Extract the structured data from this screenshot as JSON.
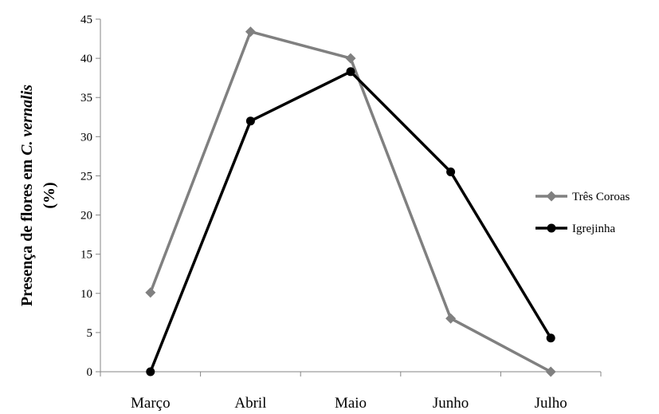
{
  "chart_data": {
    "type": "line",
    "categories": [
      "Março",
      "Abril",
      "Maio",
      "Junho",
      "Julho"
    ],
    "series": [
      {
        "name": "Três Coroas",
        "values": [
          10.1,
          43.4,
          40.0,
          6.8,
          0.0
        ],
        "color": "#808080",
        "marker": "diamond"
      },
      {
        "name": "Igrejinha",
        "values": [
          0.0,
          32.0,
          38.3,
          25.5,
          4.3
        ],
        "color": "#000000",
        "marker": "circle"
      }
    ],
    "ylim": [
      0,
      45
    ],
    "yticks": [
      0,
      5,
      10,
      15,
      20,
      25,
      30,
      35,
      40,
      45
    ],
    "ylabel": {
      "line1_prefix": "Presença de flores em ",
      "line1_species": "C. vernalis",
      "line2": "(%)"
    },
    "xlabel": "",
    "title": "",
    "grid": false,
    "legend_position": "right"
  }
}
